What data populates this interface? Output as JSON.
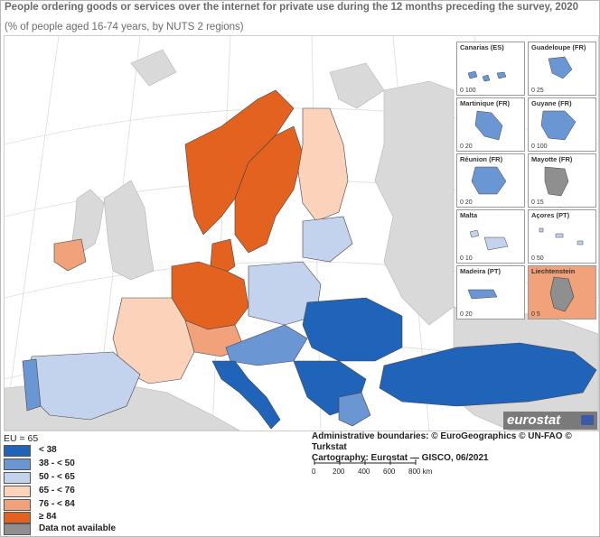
{
  "title": "People ordering goods or services over the internet for private use during the 12 months preceding the survey, 2020",
  "subtitle": "(% of people aged 16-74 years, by NUTS 2 regions)",
  "eu_average": "EU = 65",
  "legend": [
    {
      "label": "< 38",
      "color": "#1f64b8"
    },
    {
      "label": "38 - < 50",
      "color": "#6b96d4"
    },
    {
      "label": "50 - < 65",
      "color": "#c3d3ee"
    },
    {
      "label": "65 - < 76",
      "color": "#fbd2ba"
    },
    {
      "label": "76 - < 84",
      "color": "#f2a27a"
    },
    {
      "label": "≥ 84",
      "color": "#e4621f"
    },
    {
      "label": "Data not available",
      "color": "#8f8f8f"
    }
  ],
  "insets": [
    {
      "name": "Canarias (ES)",
      "scale": "0 100"
    },
    {
      "name": "Guadeloupe (FR)",
      "scale": "0 25"
    },
    {
      "name": "Martinique (FR)",
      "scale": "0 20"
    },
    {
      "name": "Guyane (FR)",
      "scale": "0 100"
    },
    {
      "name": "Réunion (FR)",
      "scale": "0 20"
    },
    {
      "name": "Mayotte (FR)",
      "scale": "0 15"
    },
    {
      "name": "Malta",
      "scale": "0 10"
    },
    {
      "name": "Açores (PT)",
      "scale": "0 50"
    },
    {
      "name": "Madeira (PT)",
      "scale": "0 20"
    },
    {
      "name": "Liechtenstein",
      "scale": "0 5"
    }
  ],
  "credits": {
    "line1": "Administrative boundaries: © EuroGeographics © UN-FAO © Turkstat",
    "line2": "Cartography: Eurostat — GISCO, 06/2021"
  },
  "scalebar": {
    "ticks": [
      "0",
      "200",
      "400",
      "600",
      "800 km"
    ]
  },
  "logo": "eurostat"
}
